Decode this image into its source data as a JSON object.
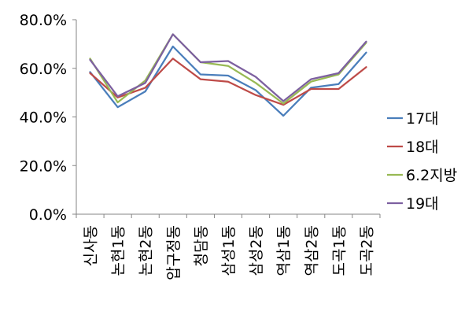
{
  "chart_data": {
    "type": "line",
    "categories": [
      "신사동",
      "논현1동",
      "논현2동",
      "압구정동",
      "청담동",
      "삼성1동",
      "삼성2동",
      "역삼1동",
      "역삼2동",
      "도곡1동",
      "도곡2동"
    ],
    "series": [
      {
        "name": "17대",
        "color": "#4a7ebb",
        "values": [
          58.5,
          44.0,
          50.5,
          69.0,
          57.5,
          57.0,
          51.0,
          40.5,
          52.0,
          53.5,
          66.5
        ]
      },
      {
        "name": "18대",
        "color": "#be4b48",
        "values": [
          58.0,
          48.0,
          52.0,
          64.0,
          55.5,
          54.5,
          49.0,
          45.0,
          51.5,
          51.5,
          60.5
        ]
      },
      {
        "name": "6.2지방",
        "color": "#98b954",
        "values": [
          64.0,
          46.0,
          55.0,
          74.0,
          62.5,
          61.0,
          54.0,
          45.5,
          54.5,
          57.5,
          70.5
        ]
      },
      {
        "name": "19대",
        "color": "#7d60a0",
        "values": [
          63.5,
          48.5,
          54.0,
          74.0,
          62.5,
          63.0,
          56.5,
          46.5,
          55.5,
          58.0,
          71.0
        ]
      }
    ],
    "yticks": [
      "0.0%",
      "20.0%",
      "40.0%",
      "60.0%",
      "80.0%"
    ],
    "ylim": [
      0,
      80
    ],
    "title": "",
    "xlabel": "",
    "ylabel": "",
    "legend_position": "right",
    "grid": false
  }
}
